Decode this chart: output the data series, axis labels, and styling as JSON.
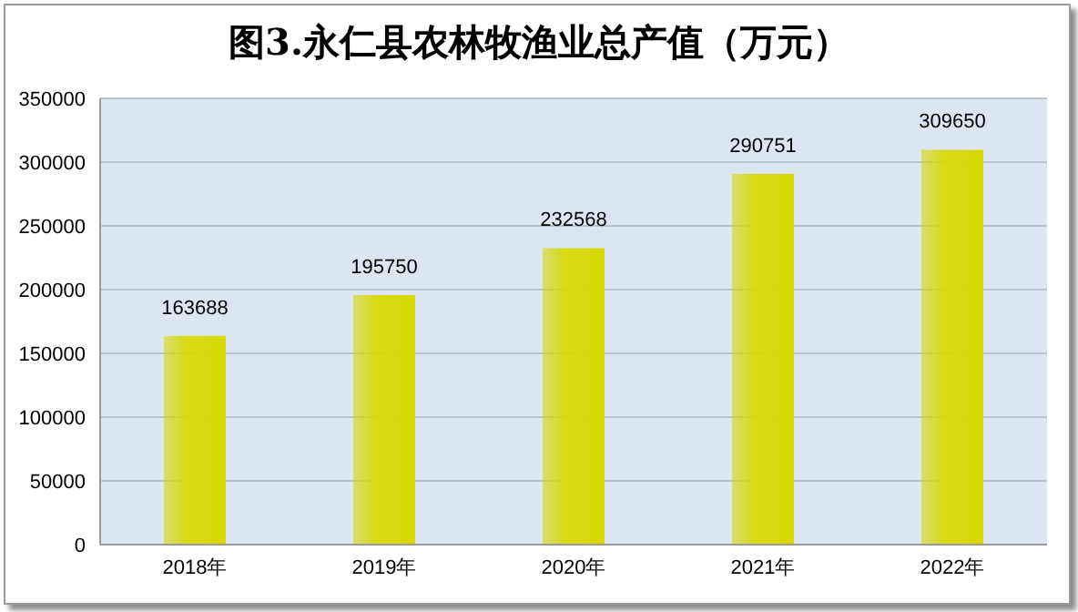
{
  "chart_data": {
    "type": "bar",
    "title": "图3.永仁县农林牧渔业总产值（万元）",
    "categories": [
      "2018年",
      "2019年",
      "2020年",
      "2021年",
      "2022年"
    ],
    "values": [
      163688,
      195750,
      232568,
      290751,
      309650
    ],
    "color": "#d8d800",
    "ylim": [
      0,
      350000
    ],
    "yticks": [
      0,
      50000,
      100000,
      150000,
      200000,
      250000,
      300000,
      350000
    ],
    "grid": "y",
    "data_labels": true
  }
}
